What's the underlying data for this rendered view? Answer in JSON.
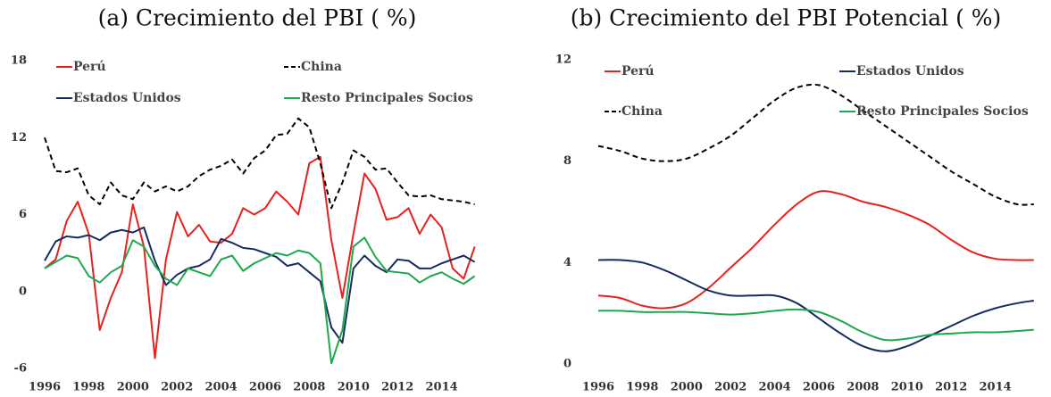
{
  "chart_data": [
    {
      "type": "line",
      "title": "(a) Crecimiento del PBI ( %)",
      "x": [
        1996.0,
        1996.5,
        1997.0,
        1997.5,
        1998.0,
        1998.5,
        1999.0,
        1999.5,
        2000.0,
        2000.5,
        2001.0,
        2001.5,
        2002.0,
        2002.5,
        2003.0,
        2003.5,
        2004.0,
        2004.5,
        2005.0,
        2005.5,
        2006.0,
        2006.5,
        2007.0,
        2007.5,
        2008.0,
        2008.5,
        2009.0,
        2009.5,
        2010.0,
        2010.5,
        2011.0,
        2011.5,
        2012.0,
        2012.5,
        2013.0,
        2013.5,
        2014.0,
        2014.5,
        2015.0,
        2015.5
      ],
      "series": [
        {
          "name": "Perú",
          "color": "#e8211c",
          "dashed": false,
          "values": [
            1.8,
            2.5,
            5.5,
            7.0,
            4.5,
            -3.0,
            -0.5,
            1.5,
            6.8,
            3.5,
            -5.2,
            2.5,
            6.2,
            4.3,
            5.2,
            3.9,
            3.8,
            4.5,
            6.5,
            6.0,
            6.5,
            7.8,
            7.0,
            6.0,
            10.0,
            10.5,
            4.0,
            -0.5,
            4.5,
            9.2,
            8.0,
            5.6,
            5.8,
            6.5,
            4.5,
            6.0,
            5.0,
            1.8,
            1.0,
            3.5
          ]
        },
        {
          "name": "China",
          "color": "#000000",
          "dashed": true,
          "values": [
            12.0,
            9.4,
            9.3,
            9.6,
            7.5,
            6.8,
            8.5,
            7.5,
            7.2,
            8.5,
            7.8,
            8.2,
            7.8,
            8.2,
            9.0,
            9.5,
            9.8,
            10.3,
            9.2,
            10.4,
            11.0,
            12.2,
            12.3,
            13.5,
            12.8,
            10.0,
            6.5,
            8.5,
            11.0,
            10.5,
            9.5,
            9.6,
            8.5,
            7.5,
            7.4,
            7.5,
            7.2,
            7.1,
            7.0,
            6.8
          ]
        },
        {
          "name": "Estados Unidos",
          "color": "#142c5e",
          "dashed": false,
          "values": [
            2.4,
            3.9,
            4.3,
            4.2,
            4.4,
            4.0,
            4.6,
            4.8,
            4.6,
            5.0,
            2.4,
            0.5,
            1.3,
            1.8,
            2.0,
            2.5,
            4.1,
            3.8,
            3.4,
            3.3,
            3.0,
            2.7,
            2.0,
            2.2,
            1.5,
            0.8,
            -2.8,
            -4.0,
            1.8,
            2.8,
            2.0,
            1.5,
            2.5,
            2.4,
            1.8,
            1.8,
            2.2,
            2.5,
            2.8,
            2.3
          ]
        },
        {
          "name": "Resto Principales Socios",
          "color": "#1ea84e",
          "dashed": false,
          "values": [
            1.8,
            2.3,
            2.8,
            2.6,
            1.2,
            0.7,
            1.5,
            2.0,
            4.0,
            3.5,
            2.0,
            1.0,
            0.5,
            1.8,
            1.5,
            1.2,
            2.5,
            2.8,
            1.6,
            2.2,
            2.6,
            3.0,
            2.8,
            3.2,
            3.0,
            2.2,
            -5.6,
            -3.0,
            3.5,
            4.2,
            2.7,
            1.6,
            1.5,
            1.4,
            0.7,
            1.2,
            1.5,
            1.0,
            0.6,
            1.2
          ]
        }
      ],
      "xlim": [
        1996,
        2016
      ],
      "xticks": [
        1996,
        1998,
        2000,
        2002,
        2004,
        2006,
        2008,
        2010,
        2012,
        2014
      ],
      "ylim": [
        -6,
        18
      ],
      "yticks": [
        -6,
        0,
        6,
        12,
        18
      ],
      "smooth": false,
      "grid": false
    },
    {
      "type": "line",
      "title": "(b) Crecimiento del PBI Potencial ( %)",
      "x": [
        1996,
        1997,
        1998,
        1999,
        2000,
        2001,
        2002,
        2003,
        2004,
        2005,
        2006,
        2007,
        2008,
        2009,
        2010,
        2011,
        2012,
        2013,
        2014,
        2015,
        2015.75
      ],
      "series": [
        {
          "name": "Perú",
          "color": "#e8211c",
          "dashed": false,
          "values": [
            2.7,
            2.6,
            2.3,
            2.2,
            2.4,
            3.0,
            3.8,
            4.6,
            5.5,
            6.3,
            6.8,
            6.7,
            6.4,
            6.2,
            5.9,
            5.5,
            4.9,
            4.4,
            4.15,
            4.1,
            4.1
          ]
        },
        {
          "name": "Estados Unidos",
          "color": "#142c5e",
          "dashed": false,
          "values": [
            4.1,
            4.1,
            4.0,
            3.7,
            3.3,
            2.9,
            2.7,
            2.7,
            2.7,
            2.4,
            1.8,
            1.2,
            0.7,
            0.5,
            0.7,
            1.1,
            1.5,
            1.9,
            2.2,
            2.4,
            2.5
          ]
        },
        {
          "name": "China",
          "color": "#000000",
          "dashed": true,
          "values": [
            8.6,
            8.4,
            8.1,
            8.0,
            8.1,
            8.5,
            9.0,
            9.7,
            10.4,
            10.9,
            11.0,
            10.6,
            10.0,
            9.4,
            8.8,
            8.2,
            7.6,
            7.1,
            6.6,
            6.3,
            6.3
          ]
        },
        {
          "name": "Resto Principales Socios",
          "color": "#1ea84e",
          "dashed": false,
          "values": [
            2.1,
            2.1,
            2.05,
            2.05,
            2.05,
            2.0,
            1.95,
            2.0,
            2.1,
            2.15,
            2.05,
            1.7,
            1.25,
            0.95,
            1.0,
            1.15,
            1.2,
            1.25,
            1.25,
            1.3,
            1.35
          ]
        }
      ],
      "xlim": [
        1996,
        2016
      ],
      "xticks": [
        1996,
        1998,
        2000,
        2002,
        2004,
        2006,
        2008,
        2010,
        2012,
        2014
      ],
      "ylim": [
        0,
        12
      ],
      "yticks": [
        0,
        4,
        8,
        12
      ],
      "smooth": true,
      "grid": false
    }
  ]
}
